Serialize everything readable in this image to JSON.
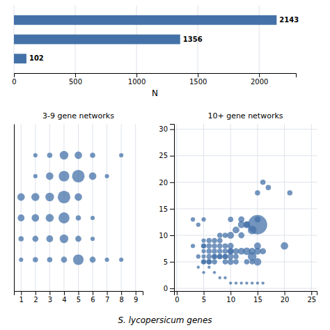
{
  "chart_data": [
    {
      "type": "bar",
      "orientation": "horizontal",
      "categories": [
        null,
        null,
        null
      ],
      "values": [
        102,
        1356,
        2143
      ],
      "color": "#4472a8",
      "xlabel": "N",
      "xlim": [
        0,
        2300
      ],
      "xticks": [
        0,
        500,
        1000,
        1500,
        2000
      ],
      "grid": true,
      "data_labels": true,
      "tick_labels": "x"
    },
    {
      "type": "scatter",
      "title": "3-9 gene networks",
      "x": [
        1,
        2,
        3,
        4,
        5,
        6,
        7,
        8,
        1,
        2,
        3,
        4,
        5,
        6,
        1,
        2,
        3,
        4,
        5,
        6,
        1,
        2,
        3,
        4,
        5,
        2,
        3,
        4,
        5,
        6,
        7,
        2,
        3,
        4,
        5,
        6,
        8
      ],
      "y": [
        7,
        7,
        7,
        7,
        7,
        7,
        7,
        7,
        8,
        8,
        8,
        8,
        8,
        8,
        9,
        9,
        9,
        9,
        9,
        9,
        10,
        10,
        10,
        10,
        10,
        11,
        11,
        11,
        11,
        11,
        11,
        12,
        12,
        12,
        12,
        12,
        12
      ],
      "sizes": [
        20,
        30,
        30,
        40,
        120,
        40,
        20,
        20,
        30,
        40,
        50,
        80,
        40,
        20,
        50,
        60,
        70,
        130,
        30,
        20,
        60,
        70,
        80,
        170,
        60,
        20,
        60,
        120,
        170,
        60,
        20,
        20,
        30,
        80,
        60,
        30,
        20
      ],
      "color": "#4472a8",
      "xlabel": "S. lycopersicum genes",
      "xlim": [
        0.5,
        9.5
      ],
      "ylim": [
        5.5,
        13.5
      ],
      "xticks": [
        1,
        2,
        3,
        4,
        5,
        6,
        7,
        8,
        9
      ],
      "grid": true,
      "tick_labels": "x"
    },
    {
      "type": "scatter",
      "title": "10+ gene networks",
      "x": [
        3,
        3,
        4,
        4,
        5,
        5,
        5,
        5,
        5,
        5,
        6,
        6,
        6,
        6,
        7,
        7,
        7,
        7,
        8,
        8,
        8,
        8,
        9,
        9,
        9,
        9,
        10,
        10,
        10,
        10,
        10,
        11,
        11,
        12,
        12,
        13,
        13,
        14,
        14,
        15,
        15,
        15,
        15,
        16,
        17,
        20,
        21,
        4,
        5,
        6,
        7,
        8,
        9,
        10,
        11,
        12,
        13,
        14,
        15,
        16,
        5,
        6,
        7,
        8,
        9,
        10,
        11,
        12,
        13,
        14,
        15,
        5,
        6,
        7,
        8,
        9,
        10,
        11,
        12,
        13,
        14,
        15,
        16
      ],
      "y": [
        8,
        13,
        6,
        12,
        5,
        6,
        7,
        8,
        9,
        13,
        5,
        6,
        7,
        9,
        5,
        6,
        7,
        8,
        6,
        7,
        8,
        9,
        5,
        6,
        7,
        8,
        5,
        6,
        7,
        8,
        13,
        5,
        6,
        10,
        13,
        5,
        12,
        5,
        7,
        5,
        7,
        13,
        18,
        20,
        19,
        8,
        18,
        4,
        3,
        4,
        3,
        2,
        2,
        1,
        1,
        1,
        1,
        1,
        1,
        1,
        8,
        8,
        9,
        10,
        10,
        10,
        11,
        12,
        12,
        11,
        12,
        5,
        5,
        6,
        6,
        6,
        7,
        7,
        7,
        7,
        6,
        8,
        7
      ],
      "sizes": [
        20,
        20,
        20,
        20,
        20,
        20,
        20,
        20,
        20,
        20,
        30,
        30,
        30,
        30,
        30,
        30,
        30,
        30,
        30,
        30,
        30,
        30,
        30,
        30,
        30,
        30,
        40,
        40,
        40,
        40,
        30,
        30,
        30,
        40,
        40,
        30,
        40,
        30,
        50,
        60,
        50,
        40,
        30,
        30,
        30,
        60,
        30,
        10,
        10,
        10,
        10,
        10,
        10,
        10,
        10,
        10,
        10,
        10,
        10,
        10,
        30,
        30,
        30,
        30,
        30,
        50,
        50,
        50,
        50,
        80,
        400,
        30,
        30,
        30,
        30,
        30,
        40,
        40,
        50,
        60,
        80,
        50,
        40
      ],
      "color": "#4472a8",
      "xlim": [
        -0.5,
        26
      ],
      "ylim": [
        -0.5,
        31
      ],
      "xticks": [
        0,
        5,
        10,
        15,
        20,
        25
      ],
      "yticks": [
        0,
        5,
        10,
        15,
        20,
        25,
        30
      ],
      "grid": true
    }
  ]
}
